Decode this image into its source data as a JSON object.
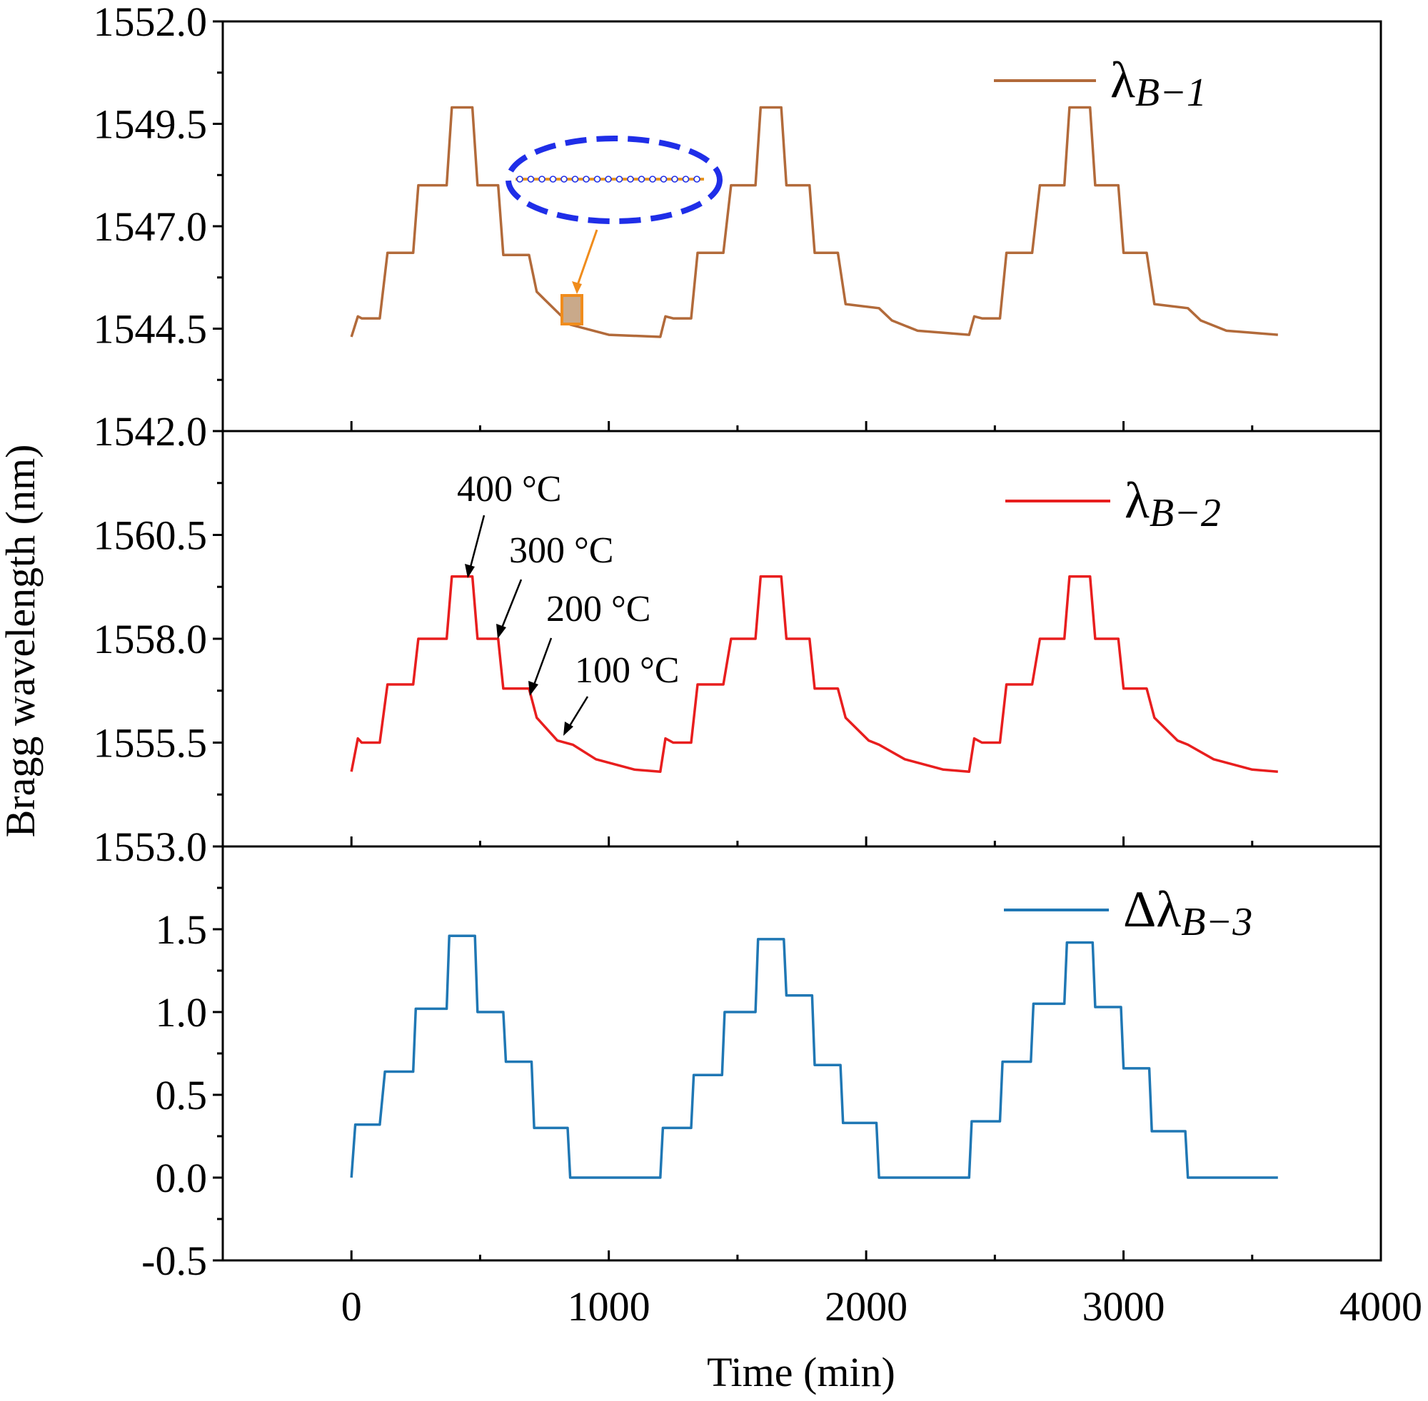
{
  "chart_data": {
    "type": "line",
    "xlabel": "Time (min)",
    "ylabel": "Bragg wavelength (nm)",
    "xlim": [
      -500,
      4000
    ],
    "xticks": [
      0,
      1000,
      2000,
      3000,
      4000
    ],
    "xtick_labels": [
      "0",
      "1000",
      "2000",
      "3000",
      "4000"
    ],
    "panels": [
      {
        "id": "p1",
        "ylim": [
          1542.0,
          1552.0
        ],
        "yticks": [
          1542.0,
          1544.5,
          1547.0,
          1549.5,
          1552.0
        ],
        "ytick_labels": [
          "1542.0",
          "1544.5",
          "1547.0",
          "1549.5",
          "1552.0"
        ],
        "series": [
          {
            "name": "λB−1",
            "legend_main": "λ",
            "legend_sub": "B−1",
            "color": "#b26a3a",
            "x": [
              0,
              25,
              40,
              110,
              140,
              240,
              260,
              370,
              390,
              470,
              490,
              570,
              590,
              690,
              720,
              850,
              1000,
              1200,
              1220,
              1250,
              1320,
              1345,
              1445,
              1475,
              1570,
              1590,
              1670,
              1690,
              1780,
              1800,
              1890,
              1920,
              2050,
              2100,
              2200,
              2400,
              2420,
              2450,
              2520,
              2545,
              2645,
              2675,
              2770,
              2790,
              2870,
              2890,
              2980,
              3000,
              3090,
              3120,
              3250,
              3300,
              3400,
              3600
            ],
            "y": [
              1544.3,
              1544.8,
              1544.75,
              1544.75,
              1546.35,
              1546.35,
              1548.0,
              1548.0,
              1549.9,
              1549.9,
              1548.0,
              1548.0,
              1546.3,
              1546.3,
              1545.4,
              1544.6,
              1544.35,
              1544.3,
              1544.8,
              1544.75,
              1544.75,
              1546.35,
              1546.35,
              1548.0,
              1548.0,
              1549.9,
              1549.9,
              1548.0,
              1548.0,
              1546.35,
              1546.35,
              1545.1,
              1545.0,
              1544.7,
              1544.45,
              1544.35,
              1544.8,
              1544.75,
              1544.75,
              1546.35,
              1546.35,
              1548.0,
              1548.0,
              1549.9,
              1549.9,
              1548.0,
              1548.0,
              1546.35,
              1546.35,
              1545.1,
              1545.0,
              1544.7,
              1544.45,
              1544.35
            ]
          }
        ]
      },
      {
        "id": "p2",
        "ylim": [
          1553.0,
          1563.0
        ],
        "yticks": [
          1553.0,
          1555.5,
          1558.0,
          1560.5
        ],
        "ytick_labels": [
          "1553.0",
          "1555.5",
          "1558.0",
          "1560.5"
        ],
        "series": [
          {
            "name": "λB−2",
            "legend_main": "λ",
            "legend_sub": "B−2",
            "color": "#e81e1e",
            "x": [
              0,
              25,
              40,
              110,
              140,
              240,
              260,
              370,
              390,
              470,
              490,
              570,
              590,
              690,
              720,
              800,
              860,
              950,
              1100,
              1200,
              1220,
              1250,
              1320,
              1345,
              1445,
              1475,
              1570,
              1590,
              1670,
              1690,
              1780,
              1800,
              1890,
              1920,
              2010,
              2050,
              2150,
              2300,
              2400,
              2420,
              2450,
              2520,
              2545,
              2645,
              2675,
              2770,
              2790,
              2870,
              2890,
              2980,
              3000,
              3090,
              3120,
              3210,
              3250,
              3350,
              3500,
              3600
            ],
            "y": [
              1554.8,
              1555.6,
              1555.5,
              1555.5,
              1556.9,
              1556.9,
              1558.0,
              1558.0,
              1559.5,
              1559.5,
              1558.0,
              1558.0,
              1556.8,
              1556.8,
              1556.1,
              1555.55,
              1555.45,
              1555.1,
              1554.85,
              1554.8,
              1555.6,
              1555.5,
              1555.5,
              1556.9,
              1556.9,
              1558.0,
              1558.0,
              1559.5,
              1559.5,
              1558.0,
              1558.0,
              1556.8,
              1556.8,
              1556.1,
              1555.55,
              1555.45,
              1555.1,
              1554.85,
              1554.8,
              1555.6,
              1555.5,
              1555.5,
              1556.9,
              1556.9,
              1558.0,
              1558.0,
              1559.5,
              1559.5,
              1558.0,
              1558.0,
              1556.8,
              1556.8,
              1556.1,
              1555.55,
              1555.45,
              1555.1,
              1554.85,
              1554.8
            ]
          }
        ],
        "annotations": [
          {
            "text": "400 °C",
            "x": 450,
            "y": 1559.5
          },
          {
            "text": "300 °C",
            "x": 580,
            "y": 1558.0
          },
          {
            "text": "200 °C",
            "x": 700,
            "y": 1556.8
          },
          {
            "text": "100 °C",
            "x": 840,
            "y": 1555.5
          }
        ]
      },
      {
        "id": "p3",
        "ylim": [
          -0.5,
          2.0
        ],
        "yticks": [
          -0.5,
          0.0,
          0.5,
          1.0,
          1.5
        ],
        "ytick_labels": [
          "-0.5",
          "0.0",
          "0.5",
          "1.0",
          "1.5"
        ],
        "series": [
          {
            "name": "ΔλB−3",
            "legend_main": "Δλ",
            "legend_sub": "B−3",
            "color": "#1f77b4",
            "x": [
              0,
              15,
              110,
              130,
              240,
              250,
              370,
              380,
              480,
              490,
              590,
              600,
              700,
              710,
              840,
              850,
              1200,
              1210,
              1320,
              1330,
              1440,
              1450,
              1570,
              1580,
              1680,
              1690,
              1790,
              1800,
              1900,
              1910,
              2040,
              2050,
              2400,
              2410,
              2520,
              2530,
              2640,
              2650,
              2770,
              2780,
              2880,
              2890,
              2990,
              3000,
              3100,
              3110,
              3240,
              3250,
              3600
            ],
            "y": [
              0.0,
              0.32,
              0.32,
              0.64,
              0.64,
              1.02,
              1.02,
              1.46,
              1.46,
              1.0,
              1.0,
              0.7,
              0.7,
              0.3,
              0.3,
              0.0,
              0.0,
              0.3,
              0.3,
              0.62,
              0.62,
              1.0,
              1.0,
              1.44,
              1.44,
              1.1,
              1.1,
              0.68,
              0.68,
              0.33,
              0.33,
              0.0,
              0.0,
              0.34,
              0.34,
              0.7,
              0.7,
              1.05,
              1.05,
              1.42,
              1.42,
              1.03,
              1.03,
              0.66,
              0.66,
              0.28,
              0.28,
              0.0,
              0.0
            ]
          }
        ]
      }
    ]
  }
}
